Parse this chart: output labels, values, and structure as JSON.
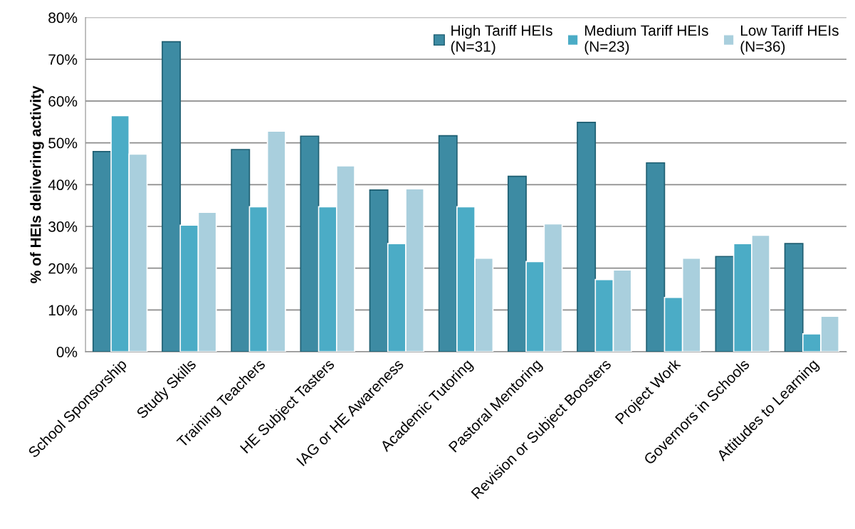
{
  "chart_data": {
    "type": "bar",
    "ylabel": "% of HEIs delivering activity",
    "categories": [
      "School Sponsorship",
      "Study Skills",
      "Training Teachers",
      "HE Subject Tasters",
      "IAG or HE Awareness",
      "Academic Tutoring",
      "Pastoral Mentoring",
      "Revision or Subject Boosters",
      "Project Work",
      "Governors in Schools",
      "Attitudes to Learning"
    ],
    "series": [
      {
        "name": "High Tariff HEIs\n(N=31)",
        "color": "#3d8ba3",
        "values": [
          47.9,
          74.2,
          48.4,
          51.6,
          38.7,
          51.7,
          42.0,
          54.9,
          45.2,
          22.8,
          25.9
        ]
      },
      {
        "name": "Medium Tariff HEIs\n(N=23)",
        "color": "#4bacc6",
        "values": [
          56.5,
          30.3,
          34.7,
          34.7,
          25.9,
          34.7,
          21.6,
          17.3,
          13.0,
          25.9,
          4.3
        ]
      },
      {
        "name": "Low Tariff HEIs\n(N=36)",
        "color": "#a9cfdd",
        "values": [
          47.3,
          33.4,
          52.8,
          44.5,
          39.0,
          22.4,
          30.6,
          19.6,
          22.4,
          27.9,
          8.5
        ]
      }
    ],
    "ylim": [
      0,
      80
    ],
    "yticks": [
      {
        "value": 0,
        "label": "0%"
      },
      {
        "value": 10,
        "label": "10%"
      },
      {
        "value": 20,
        "label": "20%"
      },
      {
        "value": 30,
        "label": "30%"
      },
      {
        "value": 40,
        "label": "40%"
      },
      {
        "value": 50,
        "label": "50%"
      },
      {
        "value": 60,
        "label": "60%"
      },
      {
        "value": 70,
        "label": "70%"
      },
      {
        "value": 80,
        "label": "80%"
      }
    ],
    "grid": "y",
    "legend": "top right"
  }
}
